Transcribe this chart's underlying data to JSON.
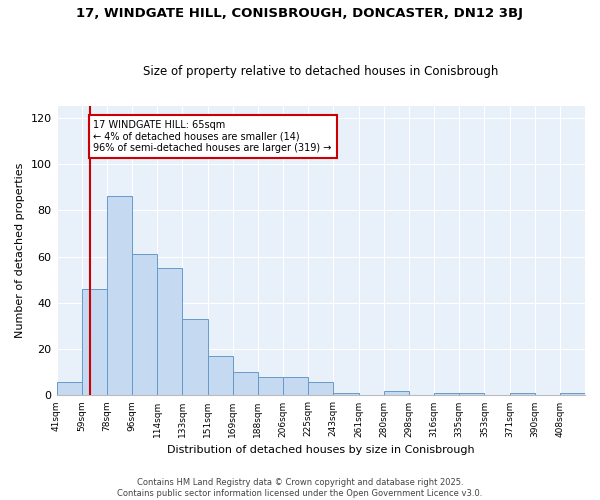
{
  "title1": "17, WINDGATE HILL, CONISBROUGH, DONCASTER, DN12 3BJ",
  "title2": "Size of property relative to detached houses in Conisbrough",
  "xlabel": "Distribution of detached houses by size in Conisbrough",
  "ylabel": "Number of detached properties",
  "bins": [
    "41sqm",
    "59sqm",
    "78sqm",
    "96sqm",
    "114sqm",
    "133sqm",
    "151sqm",
    "169sqm",
    "188sqm",
    "206sqm",
    "225sqm",
    "243sqm",
    "261sqm",
    "280sqm",
    "298sqm",
    "316sqm",
    "335sqm",
    "353sqm",
    "371sqm",
    "390sqm",
    "408sqm"
  ],
  "values": [
    6,
    46,
    86,
    61,
    55,
    33,
    17,
    10,
    8,
    8,
    6,
    1,
    0,
    2,
    0,
    1,
    1,
    0,
    1,
    0,
    1
  ],
  "bar_color": "#c5d9f0",
  "bar_edge_color": "#6699cc",
  "vline_color": "#cc0000",
  "annotation_text": "17 WINDGATE HILL: 65sqm\n← 4% of detached houses are smaller (14)\n96% of semi-detached houses are larger (319) →",
  "annotation_box_color": "white",
  "annotation_box_edge_color": "#cc0000",
  "ylim": [
    0,
    125
  ],
  "yticks": [
    0,
    20,
    40,
    60,
    80,
    100,
    120
  ],
  "bg_color": "#e8f0fa",
  "footer1": "Contains HM Land Registry data © Crown copyright and database right 2025.",
  "footer2": "Contains public sector information licensed under the Open Government Licence v3.0."
}
